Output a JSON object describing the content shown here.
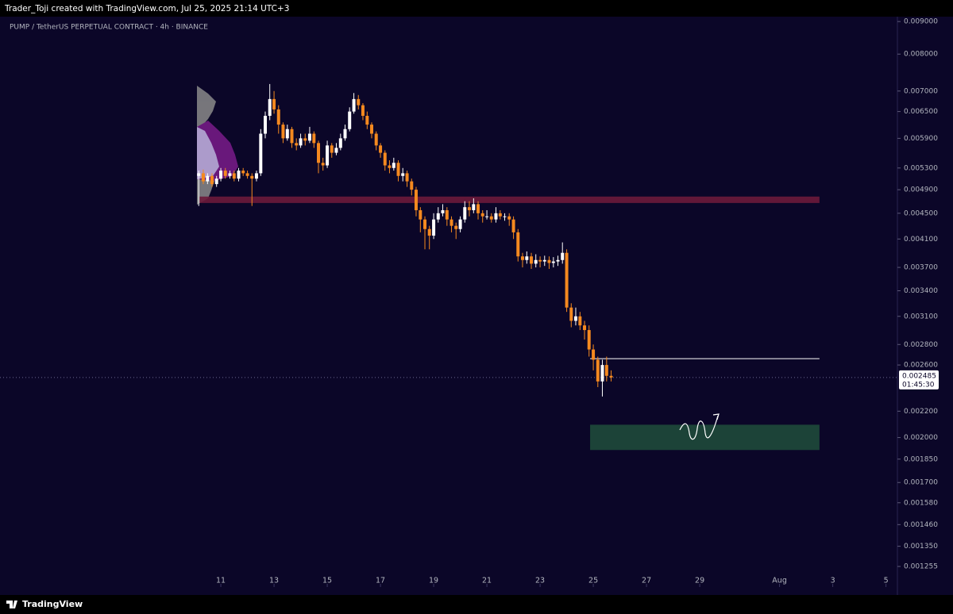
{
  "header": "Trader_Toji created with TradingView.com, Jul 25, 2025 21:14 UTC+3",
  "footer": "TradingView",
  "chart_data": {
    "type": "candlestick",
    "title": "PUMP / TetherUS PERPETUAL CONTRACT · 4h · BINANCE",
    "up_color": "#ffffff",
    "down_color": "#f5891f",
    "log_scale": true,
    "xlim": [
      2.7,
      36.43
    ],
    "ylim": [
      0.001165,
      0.00916
    ],
    "xticks": [
      11,
      13,
      15,
      17,
      19,
      21,
      23,
      25,
      27,
      29,
      {
        "value": 32,
        "label": "Aug"
      },
      {
        "value": 34,
        "label": "3"
      },
      {
        "value": 36,
        "label": "5"
      }
    ],
    "yticks": [
      {
        "value": 0.009,
        "label": "0.009000"
      },
      {
        "value": 0.008,
        "label": "0.008000"
      },
      {
        "value": 0.007,
        "label": "0.007000"
      },
      {
        "value": 0.0065,
        "label": "0.006500"
      },
      {
        "value": 0.0059,
        "label": "0.005900"
      },
      {
        "value": 0.0053,
        "label": "0.005300"
      },
      {
        "value": 0.0049,
        "label": "0.004900"
      },
      {
        "value": 0.0045,
        "label": "0.004500"
      },
      {
        "value": 0.0041,
        "label": "0.004100"
      },
      {
        "value": 0.0037,
        "label": "0.003700"
      },
      {
        "value": 0.0034,
        "label": "0.003400"
      },
      {
        "value": 0.0031,
        "label": "0.003100"
      },
      {
        "value": 0.0028,
        "label": "0.002800"
      },
      {
        "value": 0.0026,
        "label": "0.002600"
      },
      {
        "value": 0.0022,
        "label": "0.002200"
      },
      {
        "value": 0.002,
        "label": "0.002000"
      },
      {
        "value": 0.00185,
        "label": "0.001850"
      },
      {
        "value": 0.0017,
        "label": "0.001700"
      },
      {
        "value": 0.00158,
        "label": "0.001580"
      },
      {
        "value": 0.00146,
        "label": "0.001460"
      },
      {
        "value": 0.00135,
        "label": "0.001350"
      },
      {
        "value": 0.001255,
        "label": "0.001255"
      }
    ],
    "last_price": 0.002485,
    "countdown": "01:45:30",
    "x": [
      10.17,
      10.34,
      10.5,
      10.67,
      10.84,
      11.0,
      11.17,
      11.34,
      11.5,
      11.67,
      11.84,
      12.0,
      12.17,
      12.34,
      12.5,
      12.67,
      12.84,
      13.0,
      13.17,
      13.34,
      13.5,
      13.67,
      13.84,
      14.0,
      14.17,
      14.34,
      14.5,
      14.67,
      14.84,
      15.0,
      15.17,
      15.34,
      15.5,
      15.67,
      15.84,
      16.0,
      16.17,
      16.34,
      16.5,
      16.67,
      16.84,
      17.0,
      17.17,
      17.34,
      17.5,
      17.67,
      17.84,
      18.0,
      18.17,
      18.34,
      18.5,
      18.67,
      18.84,
      19.0,
      19.17,
      19.34,
      19.5,
      19.67,
      19.84,
      20.0,
      20.17,
      20.34,
      20.5,
      20.67,
      20.84,
      21.0,
      21.17,
      21.34,
      21.5,
      21.67,
      21.84,
      22.0,
      22.17,
      22.34,
      22.5,
      22.67,
      22.84,
      23.0,
      23.17,
      23.34,
      23.5,
      23.67,
      23.84,
      24.0,
      24.17,
      24.34,
      24.5,
      24.67,
      24.84,
      25.0,
      25.17,
      25.34,
      25.5,
      25.67
    ],
    "open": [
      0.00515,
      0.0052,
      0.00505,
      0.00515,
      0.005,
      0.0051,
      0.00525,
      0.00515,
      0.0052,
      0.0051,
      0.00525,
      0.0052,
      0.00515,
      0.0051,
      0.0052,
      0.006,
      0.0064,
      0.0068,
      0.00655,
      0.0062,
      0.0059,
      0.0061,
      0.0058,
      0.00575,
      0.0059,
      0.00585,
      0.006,
      0.0058,
      0.0054,
      0.00535,
      0.00575,
      0.0056,
      0.0057,
      0.0059,
      0.0061,
      0.0065,
      0.0068,
      0.00665,
      0.0064,
      0.0062,
      0.006,
      0.00575,
      0.0056,
      0.00535,
      0.0053,
      0.0054,
      0.00515,
      0.0052,
      0.00505,
      0.0049,
      0.00455,
      0.0044,
      0.00425,
      0.00415,
      0.0044,
      0.0045,
      0.00455,
      0.0044,
      0.0043,
      0.00425,
      0.0044,
      0.0046,
      0.00455,
      0.00465,
      0.0045,
      0.00445,
      0.00445,
      0.0044,
      0.0045,
      0.00445,
      0.00445,
      0.0044,
      0.0042,
      0.00385,
      0.0038,
      0.00385,
      0.00375,
      0.0038,
      0.00378,
      0.0038,
      0.00376,
      0.00378,
      0.0038,
      0.0039,
      0.0032,
      0.00305,
      0.0031,
      0.003,
      0.00295,
      0.00275,
      0.00265,
      0.00245,
      0.0026,
      0.0025
    ],
    "high": [
      0.00525,
      0.00527,
      0.0052,
      0.0052,
      0.00515,
      0.0053,
      0.0053,
      0.00525,
      0.00525,
      0.0053,
      0.0053,
      0.00525,
      0.0052,
      0.00525,
      0.0061,
      0.0065,
      0.00718,
      0.007,
      0.00665,
      0.00625,
      0.0062,
      0.00615,
      0.0059,
      0.006,
      0.006,
      0.00615,
      0.00605,
      0.00585,
      0.0055,
      0.00585,
      0.0058,
      0.0058,
      0.006,
      0.0062,
      0.0066,
      0.00695,
      0.0069,
      0.0067,
      0.0065,
      0.00625,
      0.00605,
      0.0058,
      0.00565,
      0.00545,
      0.0055,
      0.00545,
      0.0053,
      0.00525,
      0.0051,
      0.00495,
      0.0046,
      0.00445,
      0.0043,
      0.0045,
      0.0046,
      0.00465,
      0.0046,
      0.00445,
      0.00435,
      0.00445,
      0.0047,
      0.0047,
      0.00475,
      0.0047,
      0.00455,
      0.00455,
      0.0045,
      0.0046,
      0.00455,
      0.0045,
      0.0045,
      0.00445,
      0.00425,
      0.0039,
      0.00392,
      0.0039,
      0.00388,
      0.00385,
      0.00386,
      0.00385,
      0.00384,
      0.00386,
      0.00405,
      0.00395,
      0.00325,
      0.0032,
      0.00315,
      0.00305,
      0.003,
      0.0028,
      0.00268,
      0.00265,
      0.00268,
      0.00255
    ],
    "low": [
      0.00462,
      0.005,
      0.005,
      0.00495,
      0.00495,
      0.00505,
      0.0051,
      0.0051,
      0.00505,
      0.00505,
      0.00515,
      0.0051,
      0.00462,
      0.00505,
      0.00515,
      0.0059,
      0.0063,
      0.00645,
      0.006,
      0.0058,
      0.00585,
      0.0057,
      0.00565,
      0.0057,
      0.00575,
      0.0058,
      0.0057,
      0.0052,
      0.00525,
      0.0053,
      0.0055,
      0.00555,
      0.00565,
      0.00585,
      0.00605,
      0.00645,
      0.00655,
      0.0063,
      0.0061,
      0.0059,
      0.00565,
      0.0055,
      0.00525,
      0.0052,
      0.00525,
      0.00505,
      0.00505,
      0.00495,
      0.0048,
      0.00445,
      0.0042,
      0.00395,
      0.00395,
      0.0041,
      0.00435,
      0.00445,
      0.0043,
      0.0042,
      0.0041,
      0.0042,
      0.00435,
      0.00445,
      0.0045,
      0.0044,
      0.00435,
      0.0044,
      0.00435,
      0.00435,
      0.0044,
      0.00438,
      0.0043,
      0.0041,
      0.00378,
      0.0037,
      0.00375,
      0.00368,
      0.0037,
      0.0037,
      0.00372,
      0.00368,
      0.0037,
      0.00372,
      0.00375,
      0.00315,
      0.00298,
      0.003,
      0.00295,
      0.00285,
      0.00268,
      0.00255,
      0.0024,
      0.00232,
      0.00245,
      0.00245
    ],
    "close": [
      0.0052,
      0.00505,
      0.00515,
      0.005,
      0.0051,
      0.00525,
      0.00515,
      0.0052,
      0.0051,
      0.00525,
      0.0052,
      0.00515,
      0.0051,
      0.0052,
      0.006,
      0.0064,
      0.0068,
      0.00655,
      0.0062,
      0.0059,
      0.0061,
      0.0058,
      0.00575,
      0.0059,
      0.00585,
      0.006,
      0.0058,
      0.0054,
      0.00535,
      0.00575,
      0.0056,
      0.0057,
      0.0059,
      0.0061,
      0.0065,
      0.0068,
      0.00665,
      0.0064,
      0.0062,
      0.006,
      0.00575,
      0.0056,
      0.00535,
      0.0053,
      0.0054,
      0.00515,
      0.0052,
      0.00505,
      0.0049,
      0.00455,
      0.0044,
      0.00425,
      0.00415,
      0.0044,
      0.0045,
      0.00455,
      0.0044,
      0.0043,
      0.00425,
      0.0044,
      0.0046,
      0.00455,
      0.00465,
      0.0045,
      0.00445,
      0.00445,
      0.0044,
      0.0045,
      0.00445,
      0.00445,
      0.0044,
      0.0042,
      0.00385,
      0.0038,
      0.00385,
      0.00375,
      0.0038,
      0.00378,
      0.0038,
      0.00376,
      0.00378,
      0.0038,
      0.0039,
      0.0032,
      0.00305,
      0.0031,
      0.003,
      0.00295,
      0.00275,
      0.00265,
      0.00245,
      0.0026,
      0.0025,
      0.002485
    ],
    "zones": [
      {
        "color": "#6b1a3a",
        "x": [
          10.2,
          33.5
        ],
        "y": [
          0.00467,
          0.00478
        ]
      },
      {
        "color": "#1e4a3a",
        "x": [
          24.88,
          33.5
        ],
        "y": [
          0.001912,
          0.002095
        ]
      }
    ],
    "level": {
      "color": "#ffffff",
      "x": [
        24.88,
        33.5
      ],
      "y": 0.00266
    }
  }
}
